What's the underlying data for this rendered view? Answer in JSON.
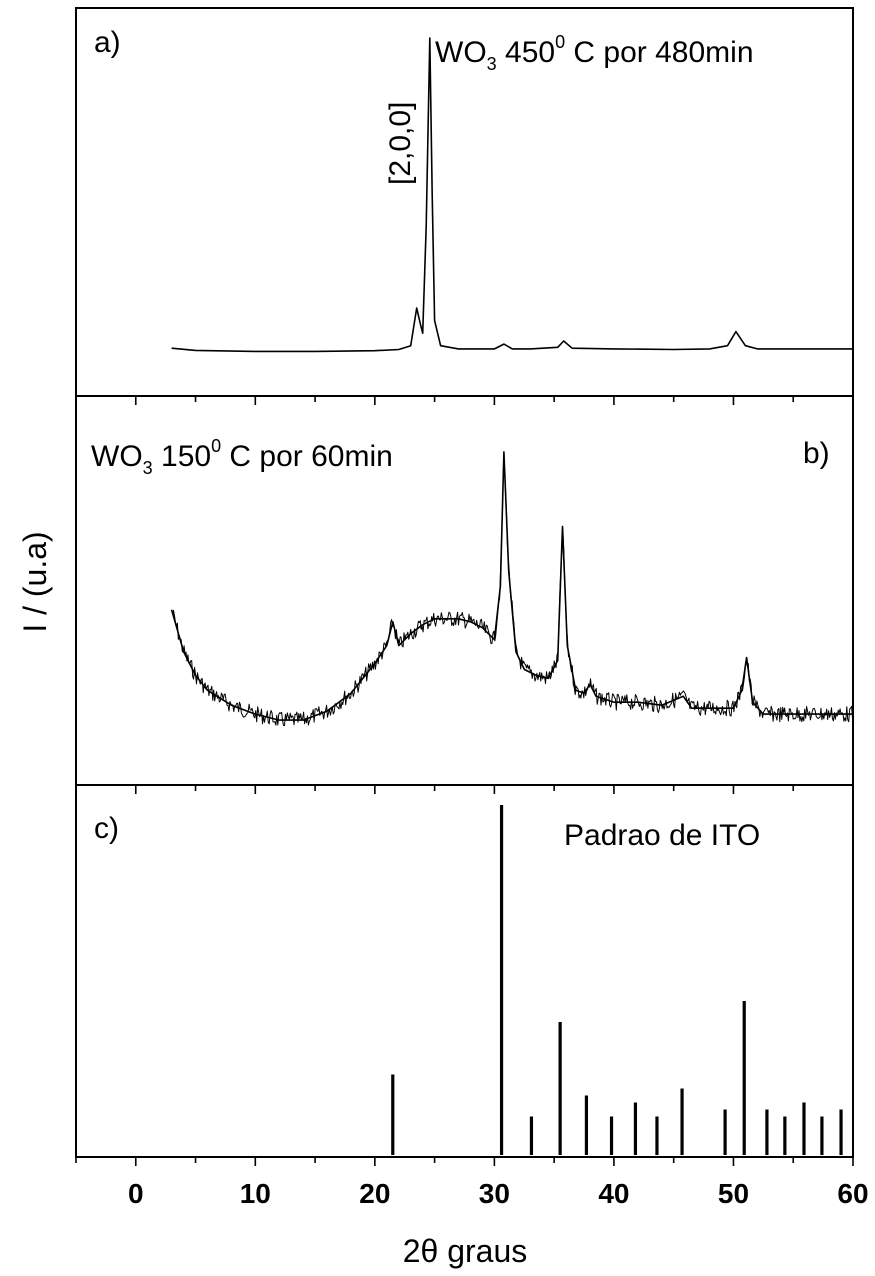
{
  "chart_data": {
    "type": "line",
    "shared_x_axis": {
      "label": "2θ graus",
      "range": [
        -5,
        60
      ],
      "ticks": [
        0,
        10,
        20,
        30,
        40,
        50,
        60
      ]
    },
    "y_axis": {
      "label": "I / (u.a)"
    },
    "panels": [
      {
        "tag": "a)",
        "type": "line",
        "annotation": "[2,0,0]",
        "label": {
          "main": "WO",
          "sub": "3",
          "mid": " 450",
          "sup": "0",
          "tail": " C por 480min"
        },
        "x": [
          3,
          5,
          10,
          15,
          20,
          22,
          23,
          23.5,
          23.8,
          24,
          24.3,
          24.6,
          24.8,
          25,
          25.5,
          27,
          30,
          30.8,
          31.5,
          33,
          35.3,
          35.8,
          36.5,
          40,
          45,
          48,
          49.5,
          50.2,
          51,
          52,
          55,
          60
        ],
        "y": [
          0.012,
          0.005,
          0.002,
          0.002,
          0.004,
          0.008,
          0.02,
          0.14,
          0.09,
          0.06,
          0.4,
          1.0,
          0.5,
          0.1,
          0.02,
          0.01,
          0.01,
          0.025,
          0.01,
          0.01,
          0.015,
          0.035,
          0.012,
          0.01,
          0.008,
          0.01,
          0.02,
          0.065,
          0.02,
          0.01,
          0.01,
          0.01
        ]
      },
      {
        "tag": "b)",
        "type": "line",
        "label": {
          "main": "WO",
          "sub": "3",
          "mid": " 150",
          "sup": "0",
          "tail": " C por 60min"
        },
        "x": [
          3,
          4,
          5,
          6,
          8,
          10,
          12,
          14,
          16,
          18,
          19,
          20,
          21,
          21.5,
          22,
          23,
          24,
          25,
          26,
          27,
          28,
          29,
          30,
          30.5,
          30.8,
          31.2,
          31.8,
          32.5,
          33.5,
          34.5,
          35.3,
          35.7,
          36.1,
          36.8,
          37.5,
          38,
          38.5,
          40,
          42,
          44,
          45.8,
          46.5,
          48,
          50,
          50.7,
          51.1,
          51.6,
          52.5,
          55,
          58,
          60
        ],
        "y": [
          0.42,
          0.28,
          0.2,
          0.15,
          0.1,
          0.07,
          0.05,
          0.05,
          0.08,
          0.14,
          0.19,
          0.24,
          0.3,
          0.38,
          0.3,
          0.34,
          0.37,
          0.39,
          0.39,
          0.39,
          0.38,
          0.36,
          0.32,
          0.5,
          0.95,
          0.55,
          0.28,
          0.22,
          0.2,
          0.19,
          0.25,
          0.7,
          0.3,
          0.15,
          0.14,
          0.17,
          0.13,
          0.11,
          0.11,
          0.1,
          0.13,
          0.09,
          0.09,
          0.09,
          0.15,
          0.26,
          0.11,
          0.07,
          0.07,
          0.07,
          0.07
        ]
      },
      {
        "tag": "c)",
        "type": "bar",
        "label": "Padrao de ITO",
        "x": [
          21.5,
          30.6,
          33.1,
          35.5,
          37.7,
          39.8,
          41.8,
          43.6,
          45.7,
          49.3,
          50.9,
          52.8,
          54.3,
          55.9,
          57.4,
          59.0
        ],
        "y": [
          0.23,
          1.0,
          0.11,
          0.38,
          0.17,
          0.11,
          0.15,
          0.11,
          0.19,
          0.13,
          0.44,
          0.13,
          0.11,
          0.15,
          0.11,
          0.13
        ]
      }
    ]
  }
}
